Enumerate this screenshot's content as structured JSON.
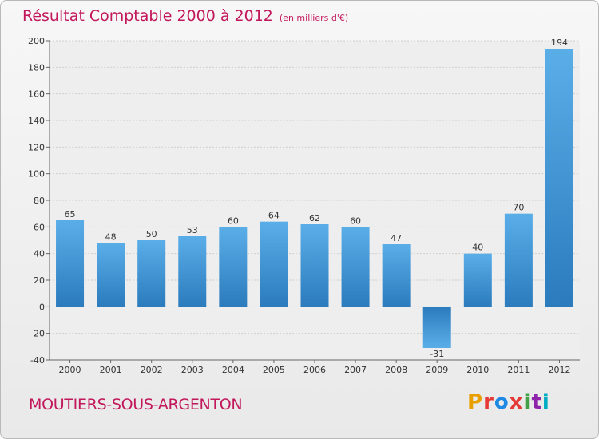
{
  "header": {
    "title": "Résultat Comptable 2000 à 2012",
    "unit": "(en milliers d'€)"
  },
  "footer": {
    "commune": "MOUTIERS-SOUS-ARGENTON",
    "logo": [
      "P",
      "r",
      "o",
      "x",
      "i",
      "t",
      "i"
    ]
  },
  "colors": {
    "title": "#c2185b",
    "bar_light": "#5aaee8",
    "bar_dark": "#2b7bbd"
  },
  "chart_data": {
    "type": "bar",
    "title": "Résultat Comptable 2000 à 2012",
    "ylabel": "",
    "xlabel": "",
    "categories": [
      "2000",
      "2001",
      "2002",
      "2003",
      "2004",
      "2005",
      "2006",
      "2007",
      "2008",
      "2009",
      "2010",
      "2011",
      "2012"
    ],
    "values": [
      65,
      48,
      50,
      53,
      60,
      64,
      62,
      60,
      47,
      -31,
      40,
      70,
      194
    ],
    "ylim": [
      -40,
      200
    ],
    "yticks": [
      -40,
      -20,
      0,
      20,
      40,
      60,
      80,
      100,
      120,
      140,
      160,
      180,
      200
    ],
    "grid": true
  }
}
